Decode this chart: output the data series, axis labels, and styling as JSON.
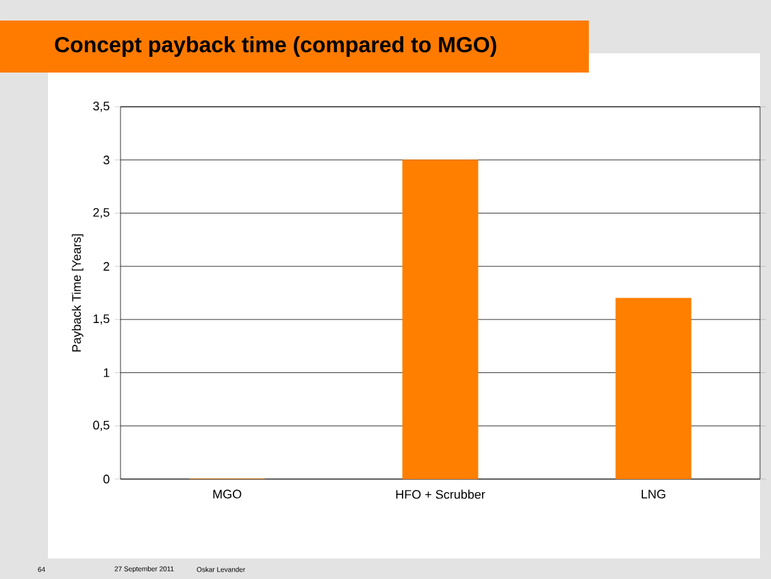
{
  "chart_data": {
    "type": "bar",
    "title": "Concept payback time (compared to MGO)",
    "ylabel": "Payback Time [Years]",
    "categories": [
      "MGO",
      "HFO + Scrubber",
      "LNG"
    ],
    "values": [
      0,
      3,
      1.7
    ],
    "color": "#ff7f00",
    "ylim": [
      0,
      3.5
    ],
    "yticks": [
      0,
      {
        "value": 0.5,
        "label": "0,5"
      },
      1,
      {
        "value": 1.5,
        "label": "1,5"
      },
      2,
      {
        "value": 2.5,
        "label": "2,5"
      },
      3,
      {
        "value": 3.5,
        "label": "3,5"
      }
    ],
    "grid": "y",
    "annotations": [
      "64",
      "27 September 2011",
      "Oskar Levander"
    ]
  }
}
